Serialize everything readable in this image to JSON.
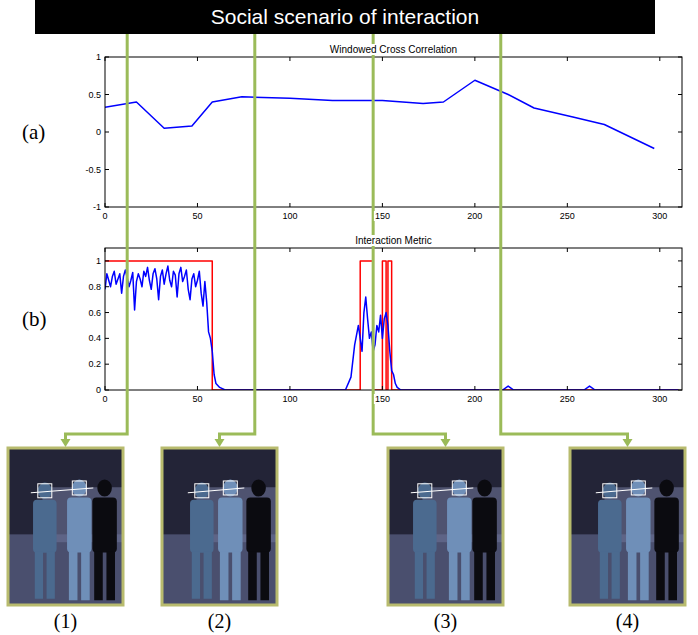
{
  "banner": {
    "title": "Social scenario of interaction"
  },
  "chart_data": [
    {
      "type": "line",
      "panel": "(a)",
      "title": "Windowed Cross Correlation",
      "xlim": [
        0,
        312
      ],
      "ylim": [
        -1,
        1
      ],
      "xticks": [
        0,
        50,
        100,
        150,
        200,
        250,
        300
      ],
      "yticks": [
        -1,
        -0.5,
        0,
        0.5,
        1
      ],
      "grid": false,
      "series": [
        {
          "color": "#0000ff",
          "x": [
            0,
            17,
            32,
            47,
            58,
            74,
            100,
            123,
            150,
            172,
            183,
            200,
            218,
            232,
            253,
            270,
            297
          ],
          "values": [
            0.33,
            0.4,
            0.05,
            0.08,
            0.4,
            0.47,
            0.45,
            0.42,
            0.42,
            0.38,
            0.4,
            0.69,
            0.5,
            0.32,
            0.2,
            0.1,
            -0.22
          ]
        }
      ]
    },
    {
      "type": "line",
      "panel": "(b)",
      "title": "Interaction Metric",
      "xlim": [
        0,
        312
      ],
      "ylim": [
        0,
        1.1
      ],
      "xticks": [
        0,
        50,
        100,
        150,
        200,
        250,
        300
      ],
      "yticks": [
        0,
        0.2,
        0.4,
        0.6,
        0.8,
        1
      ],
      "grid": false,
      "series": [
        {
          "color": "#ff0000",
          "x": [
            0,
            58,
            58,
            138,
            138,
            145,
            145,
            150,
            150,
            152,
            152,
            153,
            153,
            155,
            155,
            310
          ],
          "values": [
            1,
            1,
            0,
            0,
            1,
            1,
            0,
            0,
            1,
            1,
            0,
            0,
            1,
            1,
            0,
            0
          ]
        },
        {
          "color": "#0000ff",
          "x": [
            0,
            1,
            2,
            3,
            4,
            5,
            6,
            7,
            8,
            9,
            10,
            11,
            12,
            13,
            14,
            15,
            16,
            17,
            18,
            19,
            20,
            21,
            22,
            23,
            24,
            25,
            26,
            27,
            28,
            29,
            30,
            31,
            32,
            33,
            34,
            35,
            36,
            37,
            38,
            39,
            40,
            41,
            42,
            43,
            44,
            45,
            46,
            47,
            48,
            49,
            50,
            51,
            52,
            53,
            54,
            55,
            56,
            57,
            58,
            59,
            60,
            62,
            65,
            100,
            130,
            133,
            135,
            137,
            139,
            140,
            141,
            142,
            143,
            144,
            145,
            146,
            147,
            148,
            149,
            150,
            151,
            152,
            153,
            154,
            155,
            156,
            157,
            158,
            160,
            215,
            218,
            221,
            259,
            262,
            265,
            310
          ],
          "values": [
            0.78,
            0.9,
            0.85,
            0.8,
            0.88,
            0.92,
            0.82,
            0.86,
            0.9,
            0.75,
            0.88,
            0.93,
            0.87,
            0.8,
            0.85,
            0.91,
            0.62,
            0.84,
            0.9,
            0.86,
            0.8,
            0.92,
            0.88,
            0.95,
            0.85,
            0.78,
            0.9,
            0.94,
            0.86,
            0.7,
            0.88,
            0.93,
            0.82,
            0.9,
            0.96,
            0.85,
            0.8,
            0.92,
            0.89,
            0.72,
            0.9,
            0.95,
            0.84,
            0.88,
            0.93,
            0.78,
            0.7,
            0.86,
            0.9,
            0.8,
            0.85,
            0.92,
            0.75,
            0.65,
            0.84,
            0.68,
            0.45,
            0.4,
            0.3,
            0.12,
            0.05,
            0.02,
            0,
            0,
            0,
            0.1,
            0.35,
            0.5,
            0.3,
            0.6,
            0.72,
            0.55,
            0.4,
            0.45,
            0.3,
            0.35,
            0.5,
            0.45,
            0.58,
            0.4,
            0.55,
            0.6,
            0.5,
            0.3,
            0.15,
            0.12,
            0.05,
            0.02,
            0,
            0,
            0.03,
            0,
            0,
            0.03,
            0,
            0
          ]
        }
      ]
    }
  ],
  "frames": {
    "x": [
      12,
      81,
      145,
      214
    ],
    "labels": [
      "(1)",
      "(2)",
      "(3)",
      "(4)"
    ]
  }
}
